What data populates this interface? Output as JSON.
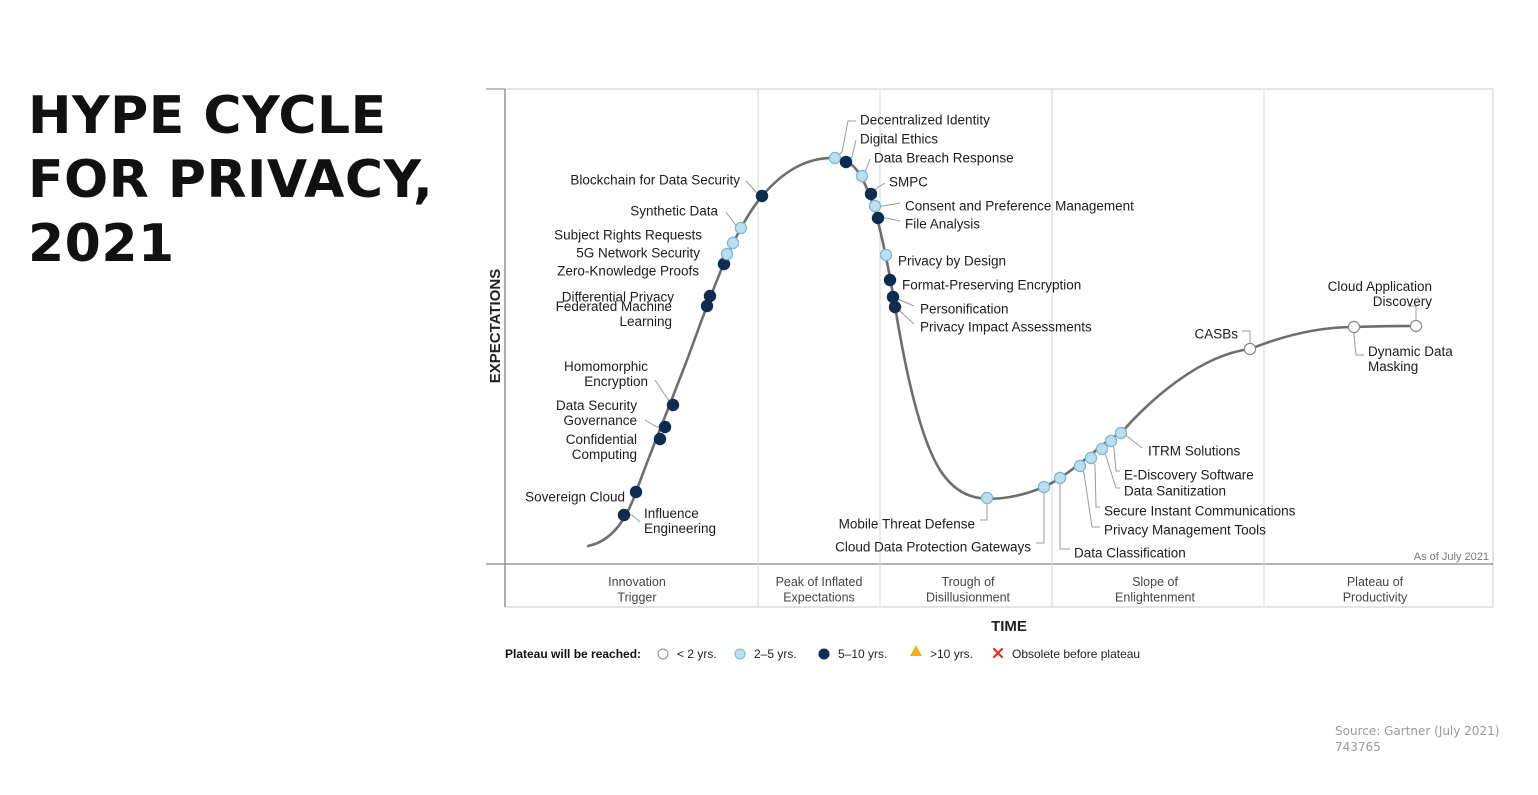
{
  "page": {
    "title_lines": [
      "HYPE CYCLE",
      "FOR PRIVACY,",
      "2021"
    ],
    "source_lines": [
      "Source: Gartner (July 2021)",
      "743765"
    ]
  },
  "chart_data": {
    "type": "scatter",
    "ylabel": "EXPECTATIONS",
    "xlabel": "TIME",
    "as_of": "As of July 2021",
    "phases": [
      {
        "name": "phase-innovation-trigger",
        "lines": [
          "Innovation",
          "Trigger"
        ]
      },
      {
        "name": "phase-peak",
        "lines": [
          "Peak of Inflated",
          "Expectations"
        ]
      },
      {
        "name": "phase-trough",
        "lines": [
          "Trough of",
          "Disillusionment"
        ]
      },
      {
        "name": "phase-slope",
        "lines": [
          "Slope of",
          "Enlightenment"
        ]
      },
      {
        "name": "phase-plateau",
        "lines": [
          "Plateau of",
          "Productivity"
        ]
      }
    ],
    "legend": {
      "title": "Plateau will be reached:",
      "items": [
        {
          "key": "lt2",
          "label": "< 2 yrs."
        },
        {
          "key": "2to5",
          "label": "2–5 yrs."
        },
        {
          "key": "5to10",
          "label": "5–10 yrs."
        },
        {
          "key": "gt10",
          "label": ">10 yrs."
        },
        {
          "key": "obsolete",
          "label": "Obsolete before plateau"
        }
      ]
    },
    "colors": {
      "lt2": "#ffffff",
      "2to5": "#b9dff0",
      "5to10": "#0c2c52",
      "gt10": "#f0b31c",
      "obsolete": "#e0302a",
      "curve": "#6e6e6e"
    },
    "points": [
      {
        "name": "Influence Engineering",
        "category": "5to10",
        "label_lines": [
          "Influence",
          "Engineering"
        ]
      },
      {
        "name": "Sovereign Cloud",
        "category": "5to10",
        "label_lines": [
          "Sovereign Cloud"
        ]
      },
      {
        "name": "Confidential Computing",
        "category": "5to10",
        "label_lines": [
          "Confidential",
          "Computing"
        ]
      },
      {
        "name": "Data Security Governance",
        "category": "5to10",
        "label_lines": [
          "Data Security",
          "Governance"
        ]
      },
      {
        "name": "Homomorphic Encryption",
        "category": "5to10",
        "label_lines": [
          "Homomorphic",
          "Encryption"
        ]
      },
      {
        "name": "Federated Machine Learning",
        "category": "5to10",
        "label_lines": [
          "Federated Machine",
          "Learning"
        ]
      },
      {
        "name": "Differential Privacy",
        "category": "5to10",
        "label_lines": [
          "Differential Privacy"
        ]
      },
      {
        "name": "Zero-Knowledge Proofs",
        "category": "5to10",
        "label_lines": [
          "Zero-Knowledge Proofs"
        ]
      },
      {
        "name": "5G Network Security",
        "category": "2to5",
        "label_lines": [
          "5G Network Security"
        ]
      },
      {
        "name": "Subject Rights Requests",
        "category": "2to5",
        "label_lines": [
          "Subject Rights Requests"
        ]
      },
      {
        "name": "Synthetic Data",
        "category": "2to5",
        "label_lines": [
          "Synthetic Data"
        ]
      },
      {
        "name": "Blockchain for Data Security",
        "category": "5to10",
        "label_lines": [
          "Blockchain for Data Security"
        ]
      },
      {
        "name": "Decentralized Identity",
        "category": "2to5",
        "label_lines": [
          "Decentralized Identity"
        ]
      },
      {
        "name": "Digital Ethics",
        "category": "5to10",
        "label_lines": [
          "Digital Ethics"
        ]
      },
      {
        "name": "Data Breach Response",
        "category": "2to5",
        "label_lines": [
          "Data Breach Response"
        ]
      },
      {
        "name": "SMPC",
        "category": "5to10",
        "label_lines": [
          "SMPC"
        ]
      },
      {
        "name": "Consent and Preference Management",
        "category": "2to5",
        "label_lines": [
          "Consent and Preference Management"
        ]
      },
      {
        "name": "File Analysis",
        "category": "5to10",
        "label_lines": [
          "File Analysis"
        ]
      },
      {
        "name": "Privacy by Design",
        "category": "2to5",
        "label_lines": [
          "Privacy by Design"
        ]
      },
      {
        "name": "Format-Preserving Encryption",
        "category": "5to10",
        "label_lines": [
          "Format-Preserving Encryption"
        ]
      },
      {
        "name": "Personification",
        "category": "5to10",
        "label_lines": [
          "Personification"
        ]
      },
      {
        "name": "Privacy Impact Assessments",
        "category": "5to10",
        "label_lines": [
          "Privacy Impact Assessments"
        ]
      },
      {
        "name": "Mobile Threat Defense",
        "category": "2to5",
        "label_lines": [
          "Mobile Threat Defense"
        ]
      },
      {
        "name": "Cloud Data Protection Gateways",
        "category": "2to5",
        "label_lines": [
          "Cloud Data Protection Gateways"
        ]
      },
      {
        "name": "Data Classification",
        "category": "2to5",
        "label_lines": [
          "Data Classification"
        ]
      },
      {
        "name": "Privacy Management Tools",
        "category": "2to5",
        "label_lines": [
          "Privacy Management Tools"
        ]
      },
      {
        "name": "Secure Instant Communications",
        "category": "2to5",
        "label_lines": [
          "Secure Instant Communications"
        ]
      },
      {
        "name": "Data Sanitization",
        "category": "2to5",
        "label_lines": [
          "Data Sanitization"
        ]
      },
      {
        "name": "E-Discovery Software",
        "category": "2to5",
        "label_lines": [
          "E-Discovery Software"
        ]
      },
      {
        "name": "ITRM Solutions",
        "category": "2to5",
        "label_lines": [
          "ITRM Solutions"
        ]
      },
      {
        "name": "CASBs",
        "category": "lt2",
        "label_lines": [
          "CASBs"
        ]
      },
      {
        "name": "Cloud Application Discovery",
        "category": "lt2",
        "label_lines": [
          "Cloud Application",
          "Discovery"
        ]
      },
      {
        "name": "Dynamic Data Masking",
        "category": "lt2",
        "label_lines": [
          "Dynamic Data",
          "Masking"
        ]
      }
    ]
  }
}
